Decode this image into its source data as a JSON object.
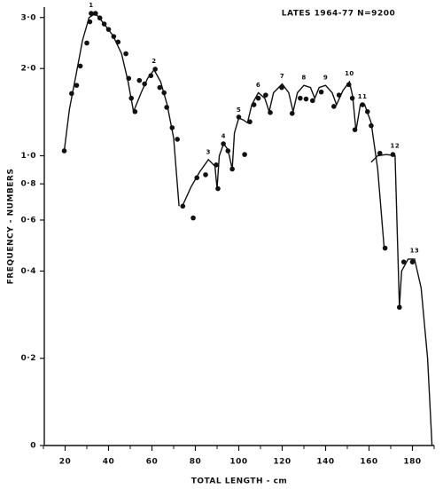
{
  "chart_data": {
    "type": "scatter",
    "title": "LATES 1964-77 N=9200",
    "x_label": "TOTAL LENGTH - cm",
    "y_label": "FREQUENCY - NUMBERS",
    "log_y": true,
    "xlim": [
      10,
      190
    ],
    "ylim": [
      0.1,
      3.2
    ],
    "xticks": [
      20,
      40,
      60,
      80,
      100,
      120,
      140,
      160,
      180
    ],
    "xminorticks": [
      10,
      30,
      50,
      70,
      90,
      110,
      130,
      150,
      170,
      190
    ],
    "yticks": [
      {
        "value": 0.1,
        "label": "0"
      },
      {
        "value": 0.2,
        "label": "0·2"
      },
      {
        "value": 0.4,
        "label": "0·4"
      },
      {
        "value": 0.6,
        "label": "0·6"
      },
      {
        "value": 0.8,
        "label": "0·8"
      },
      {
        "value": 1.0,
        "label": "1·0"
      },
      {
        "value": 2.0,
        "label": "2·0"
      },
      {
        "value": 3.0,
        "label": "3·0"
      }
    ],
    "series": [
      {
        "type": "scatter",
        "color": "#111111",
        "x": [
          19.6,
          23,
          25.3,
          27,
          30,
          31.4,
          32,
          34,
          36,
          38,
          40,
          42.4,
          44.4,
          48,
          49.3,
          50.5,
          52.2,
          54.2,
          56.6,
          59.5,
          61.5,
          63.6,
          65.6,
          66.8,
          69.3,
          71.7,
          74.2,
          79,
          80.7,
          84.7,
          89.6,
          90.4,
          92.9,
          95,
          97,
          100,
          102.7,
          105.1,
          107,
          109,
          112.4,
          114.5,
          119.8,
          124.6,
          128.3,
          131,
          134,
          138,
          143.8,
          146.2,
          150.7,
          152.3,
          153.5,
          157,
          159.3,
          161,
          165,
          167.4,
          171,
          174,
          176,
          180
        ],
        "values": [
          1.04,
          1.64,
          1.75,
          2.04,
          2.45,
          2.9,
          3.1,
          3.1,
          2.99,
          2.85,
          2.73,
          2.58,
          2.47,
          2.25,
          1.85,
          1.58,
          1.42,
          1.82,
          1.77,
          1.89,
          1.99,
          1.72,
          1.65,
          1.47,
          1.25,
          1.14,
          0.67,
          0.61,
          0.84,
          0.86,
          0.93,
          0.77,
          1.1,
          1.04,
          0.9,
          1.36,
          1.01,
          1.31,
          1.5,
          1.58,
          1.62,
          1.41,
          1.72,
          1.4,
          1.58,
          1.57,
          1.55,
          1.66,
          1.48,
          1.62,
          1.76,
          1.58,
          1.23,
          1.5,
          1.42,
          1.27,
          1.02,
          0.48,
          1.01,
          0.3,
          0.43,
          0.43
        ]
      },
      {
        "type": "line",
        "color": "#111111",
        "x": [
          19.6,
          22,
          25,
          28,
          31,
          34,
          38,
          42,
          46,
          49,
          51.5,
          55,
          58,
          61,
          64,
          67,
          70,
          72.5,
          null,
          74,
          78,
          82,
          86,
          89,
          90,
          91,
          93,
          95,
          97,
          98,
          100,
          102,
          104,
          106,
          109,
          112,
          114,
          116,
          120,
          123,
          125,
          127,
          130,
          133,
          135,
          137,
          140,
          143,
          145,
          148,
          151,
          152.5,
          154,
          156,
          158,
          161,
          164,
          167,
          null,
          161,
          164,
          168,
          172,
          174,
          175,
          178,
          181,
          184,
          187,
          189
        ],
        "values": [
          1.04,
          1.45,
          1.9,
          2.5,
          3.0,
          3.1,
          2.85,
          2.6,
          2.25,
          1.8,
          1.42,
          1.65,
          1.85,
          1.98,
          1.8,
          1.5,
          1.15,
          0.67,
          null,
          0.67,
          0.78,
          0.88,
          0.97,
          0.92,
          0.77,
          1.0,
          1.1,
          1.05,
          0.9,
          1.2,
          1.35,
          1.33,
          1.3,
          1.5,
          1.65,
          1.58,
          1.42,
          1.65,
          1.77,
          1.65,
          1.42,
          1.65,
          1.75,
          1.72,
          1.58,
          1.72,
          1.75,
          1.65,
          1.5,
          1.68,
          1.8,
          1.6,
          1.22,
          1.5,
          1.5,
          1.3,
          0.9,
          0.48,
          null,
          0.95,
          1.0,
          1.01,
          1.0,
          0.3,
          0.4,
          0.44,
          0.44,
          0.35,
          0.2,
          0.1
        ]
      }
    ],
    "annotations": [
      {
        "text": "1",
        "x": 32,
        "y": 3.3
      },
      {
        "text": "2",
        "x": 61,
        "y": 2.12
      },
      {
        "text": "3",
        "x": 86,
        "y": 1.03
      },
      {
        "text": "4",
        "x": 93,
        "y": 1.17
      },
      {
        "text": "5",
        "x": 100,
        "y": 1.44
      },
      {
        "text": "6",
        "x": 109,
        "y": 1.75
      },
      {
        "text": "7",
        "x": 120,
        "y": 1.88
      },
      {
        "text": "8",
        "x": 130,
        "y": 1.86
      },
      {
        "text": "9",
        "x": 140,
        "y": 1.86
      },
      {
        "text": "10",
        "x": 151,
        "y": 1.92
      },
      {
        "text": "11",
        "x": 157,
        "y": 1.6
      },
      {
        "text": "12",
        "x": 172,
        "y": 1.08
      },
      {
        "text": "13",
        "x": 181,
        "y": 0.47
      }
    ]
  }
}
